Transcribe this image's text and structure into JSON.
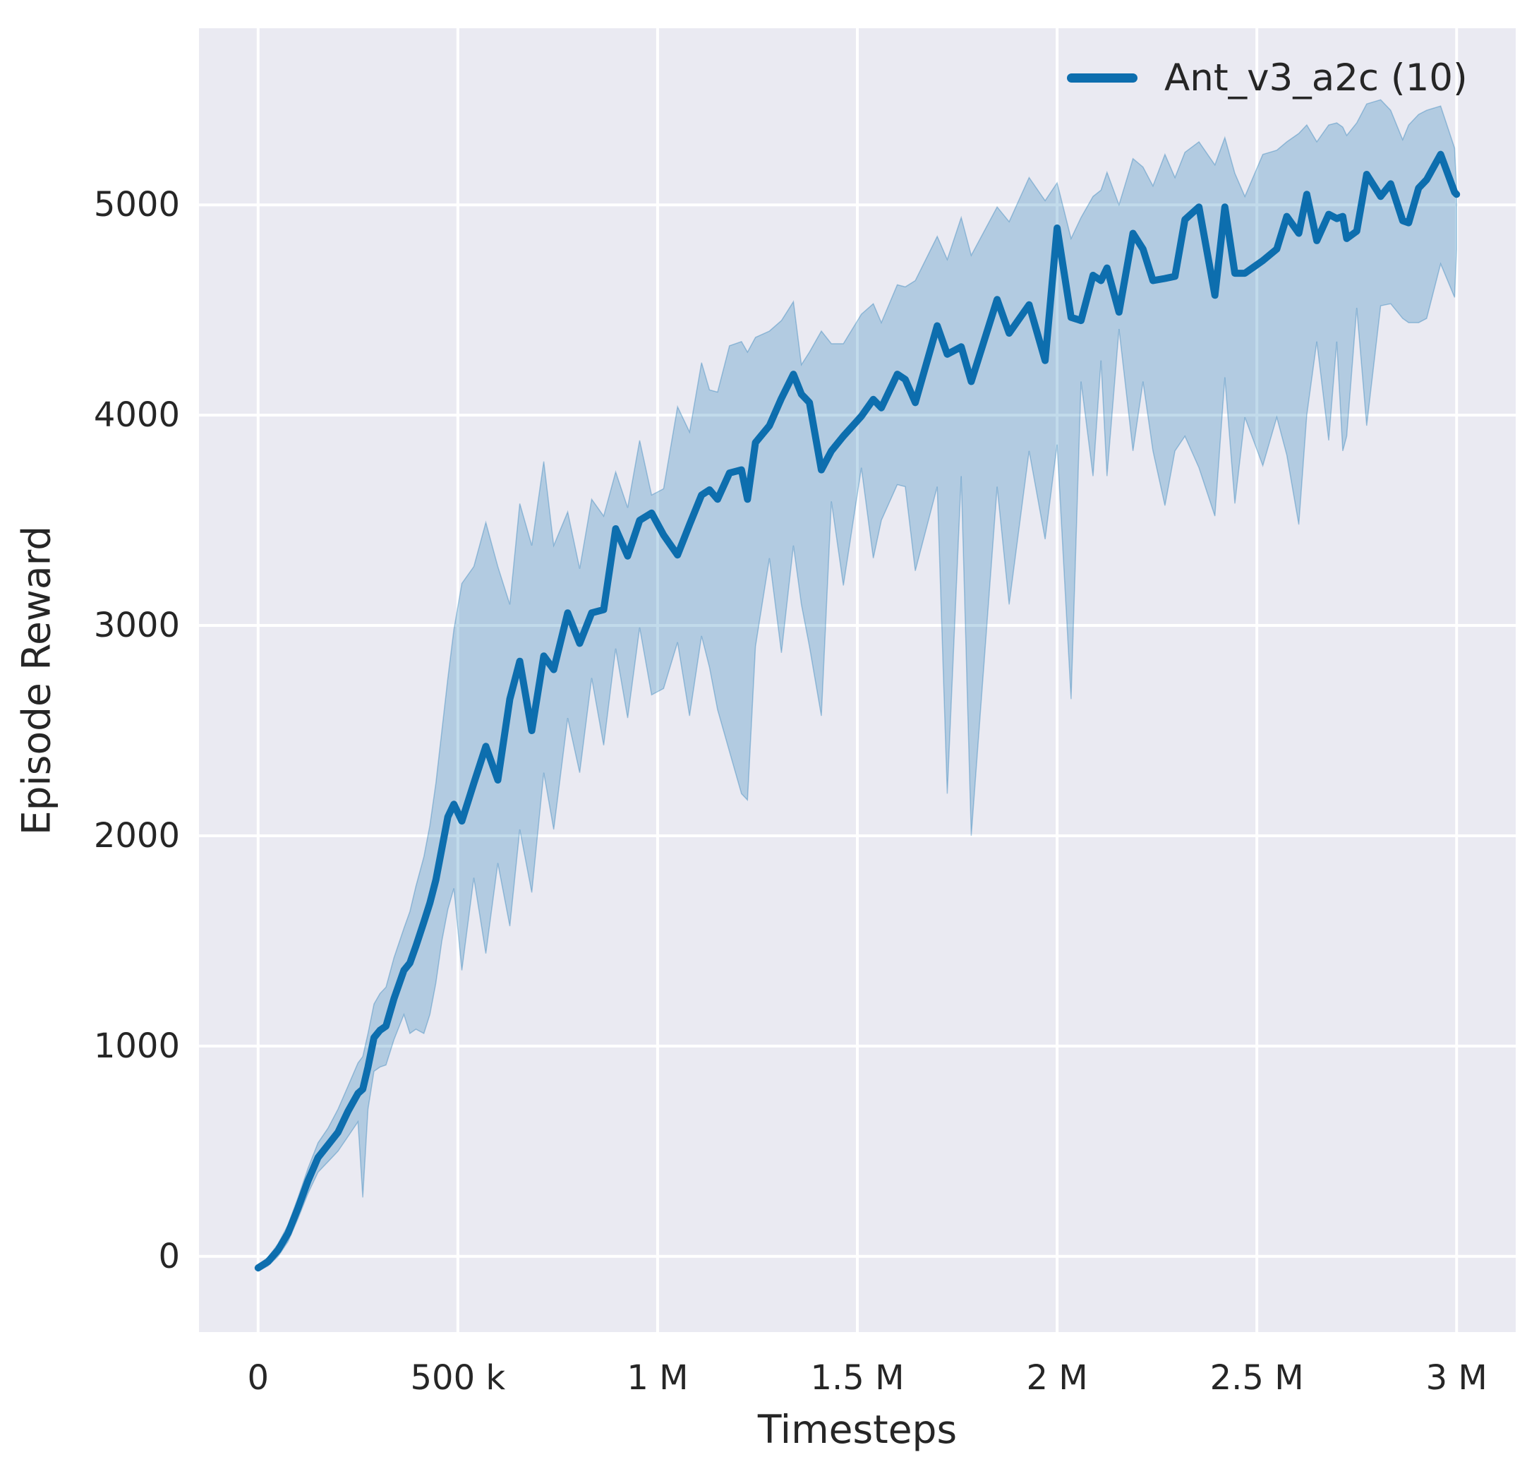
{
  "chart_data": {
    "type": "line",
    "title": "",
    "xlabel": "Timesteps",
    "ylabel": "Episode Reward",
    "x_unit": "timesteps, stored in thousands",
    "xlim_k": [
      -148,
      3148
    ],
    "ylim": [
      -360,
      5840
    ],
    "grid": true,
    "legend_position": "upper right",
    "x_ticks": [
      {
        "value_k": 0,
        "label": "0"
      },
      {
        "value_k": 500,
        "label": "500 k"
      },
      {
        "value_k": 1000,
        "label": "1 M"
      },
      {
        "value_k": 1500,
        "label": "1.5 M"
      },
      {
        "value_k": 2000,
        "label": "2 M"
      },
      {
        "value_k": 2500,
        "label": "2.5 M"
      },
      {
        "value_k": 3000,
        "label": "3 M"
      }
    ],
    "y_ticks": [
      {
        "value": 0,
        "label": "0"
      },
      {
        "value": 1000,
        "label": "1000"
      },
      {
        "value": 2000,
        "label": "2000"
      },
      {
        "value": 3000,
        "label": "3000"
      },
      {
        "value": 4000,
        "label": "4000"
      },
      {
        "value": 5000,
        "label": "5000"
      }
    ],
    "colors": {
      "panel_bg": "#eaeaf2",
      "grid": "#ffffff",
      "line": "#0d6eae",
      "band_fill": "rgba(13,110,174,0.25)",
      "band_edge": "rgba(13,110,174,0.32)",
      "text": "#262626"
    },
    "series": [
      {
        "name": "Ant_v3_a2c (10)",
        "color": "#0d6eae",
        "point_format": "[t_thousands, mean, band_lower, band_upper]",
        "points": [
          [
            0,
            -55,
            -70,
            -40
          ],
          [
            25,
            -25,
            -45,
            -5
          ],
          [
            50,
            30,
            0,
            60
          ],
          [
            75,
            110,
            70,
            150
          ],
          [
            100,
            230,
            180,
            280
          ],
          [
            125,
            360,
            300,
            420
          ],
          [
            150,
            470,
            400,
            540
          ],
          [
            175,
            530,
            450,
            610
          ],
          [
            200,
            590,
            500,
            700
          ],
          [
            225,
            690,
            570,
            810
          ],
          [
            250,
            775,
            640,
            920
          ],
          [
            262,
            795,
            280,
            950
          ],
          [
            275,
            900,
            700,
            1060
          ],
          [
            290,
            1040,
            880,
            1200
          ],
          [
            305,
            1075,
            900,
            1250
          ],
          [
            320,
            1095,
            910,
            1280
          ],
          [
            340,
            1225,
            1030,
            1420
          ],
          [
            365,
            1360,
            1150,
            1560
          ],
          [
            380,
            1395,
            1060,
            1640
          ],
          [
            395,
            1475,
            1080,
            1760
          ],
          [
            415,
            1590,
            1060,
            1900
          ],
          [
            430,
            1680,
            1150,
            2050
          ],
          [
            445,
            1790,
            1300,
            2250
          ],
          [
            460,
            1940,
            1500,
            2500
          ],
          [
            475,
            2090,
            1650,
            2750
          ],
          [
            490,
            2150,
            1750,
            2980
          ],
          [
            510,
            2070,
            1360,
            3200
          ],
          [
            540,
            2250,
            1800,
            3280
          ],
          [
            570,
            2425,
            1440,
            3490
          ],
          [
            600,
            2265,
            1870,
            3280
          ],
          [
            630,
            2650,
            1570,
            3100
          ],
          [
            655,
            2830,
            2030,
            3580
          ],
          [
            685,
            2500,
            1730,
            3380
          ],
          [
            715,
            2855,
            2300,
            3780
          ],
          [
            740,
            2790,
            2030,
            3380
          ],
          [
            775,
            3060,
            2560,
            3540
          ],
          [
            805,
            2915,
            2300,
            3270
          ],
          [
            835,
            3060,
            2750,
            3600
          ],
          [
            865,
            3075,
            2430,
            3520
          ],
          [
            895,
            3460,
            2890,
            3730
          ],
          [
            925,
            3330,
            2560,
            3560
          ],
          [
            955,
            3500,
            2990,
            3880
          ],
          [
            985,
            3535,
            2670,
            3620
          ],
          [
            1015,
            3430,
            2700,
            3650
          ],
          [
            1050,
            3335,
            2920,
            4040
          ],
          [
            1080,
            3480,
            2570,
            3920
          ],
          [
            1110,
            3620,
            2950,
            4250
          ],
          [
            1130,
            3645,
            2800,
            4120
          ],
          [
            1150,
            3600,
            2600,
            4110
          ],
          [
            1180,
            3725,
            2400,
            4330
          ],
          [
            1210,
            3740,
            2200,
            4350
          ],
          [
            1225,
            3600,
            2170,
            4300
          ],
          [
            1245,
            3870,
            2900,
            4370
          ],
          [
            1280,
            3950,
            3320,
            4400
          ],
          [
            1310,
            4080,
            2870,
            4450
          ],
          [
            1340,
            4195,
            3380,
            4540
          ],
          [
            1360,
            4100,
            3100,
            4240
          ],
          [
            1380,
            4060,
            2900,
            4300
          ],
          [
            1410,
            3740,
            2570,
            4400
          ],
          [
            1435,
            3830,
            3590,
            4340
          ],
          [
            1465,
            3900,
            3190,
            4340
          ],
          [
            1510,
            3995,
            3750,
            4480
          ],
          [
            1540,
            4075,
            3320,
            4530
          ],
          [
            1560,
            4035,
            3500,
            4440
          ],
          [
            1600,
            4195,
            3670,
            4620
          ],
          [
            1620,
            4170,
            3660,
            4610
          ],
          [
            1645,
            4060,
            3260,
            4640
          ],
          [
            1700,
            4425,
            3660,
            4850
          ],
          [
            1725,
            4290,
            2200,
            4740
          ],
          [
            1760,
            4325,
            3710,
            4940
          ],
          [
            1785,
            4160,
            2000,
            4760
          ],
          [
            1850,
            4550,
            3660,
            4990
          ],
          [
            1880,
            4390,
            3100,
            4920
          ],
          [
            1930,
            4525,
            3830,
            5130
          ],
          [
            1970,
            4260,
            3410,
            5020
          ],
          [
            2000,
            4890,
            3860,
            5105
          ],
          [
            2035,
            4465,
            2650,
            4840
          ],
          [
            2060,
            4450,
            4160,
            4940
          ],
          [
            2090,
            4665,
            3710,
            5040
          ],
          [
            2110,
            4640,
            4260,
            5070
          ],
          [
            2125,
            4700,
            3710,
            5155
          ],
          [
            2155,
            4490,
            4410,
            5000
          ],
          [
            2190,
            4865,
            3830,
            5220
          ],
          [
            2215,
            4790,
            4160,
            5180
          ],
          [
            2240,
            4640,
            3830,
            5090
          ],
          [
            2270,
            4650,
            3570,
            5240
          ],
          [
            2295,
            4660,
            3830,
            5130
          ],
          [
            2320,
            4930,
            3900,
            5250
          ],
          [
            2355,
            4990,
            3750,
            5300
          ],
          [
            2395,
            4570,
            3520,
            5190
          ],
          [
            2420,
            4990,
            4180,
            5320
          ],
          [
            2445,
            4675,
            3580,
            5150
          ],
          [
            2470,
            4675,
            3990,
            5040
          ],
          [
            2515,
            4735,
            3760,
            5240
          ],
          [
            2550,
            4790,
            3990,
            5260
          ],
          [
            2575,
            4945,
            3810,
            5300
          ],
          [
            2605,
            4865,
            3480,
            5340
          ],
          [
            2625,
            5050,
            4000,
            5380
          ],
          [
            2650,
            4830,
            4350,
            5300
          ],
          [
            2680,
            4955,
            3880,
            5380
          ],
          [
            2700,
            4935,
            4350,
            5390
          ],
          [
            2715,
            4945,
            3830,
            5370
          ],
          [
            2725,
            4840,
            3900,
            5330
          ],
          [
            2750,
            4875,
            4510,
            5390
          ],
          [
            2775,
            5145,
            3950,
            5480
          ],
          [
            2810,
            5040,
            4520,
            5500
          ],
          [
            2835,
            5100,
            4530,
            5450
          ],
          [
            2865,
            4925,
            4460,
            5310
          ],
          [
            2880,
            4915,
            4440,
            5380
          ],
          [
            2905,
            5080,
            4440,
            5430
          ],
          [
            2925,
            5120,
            4460,
            5450
          ],
          [
            2960,
            5240,
            4720,
            5470
          ],
          [
            2995,
            5060,
            4560,
            5270
          ],
          [
            3000,
            5050,
            4790,
            5080
          ]
        ]
      }
    ]
  }
}
